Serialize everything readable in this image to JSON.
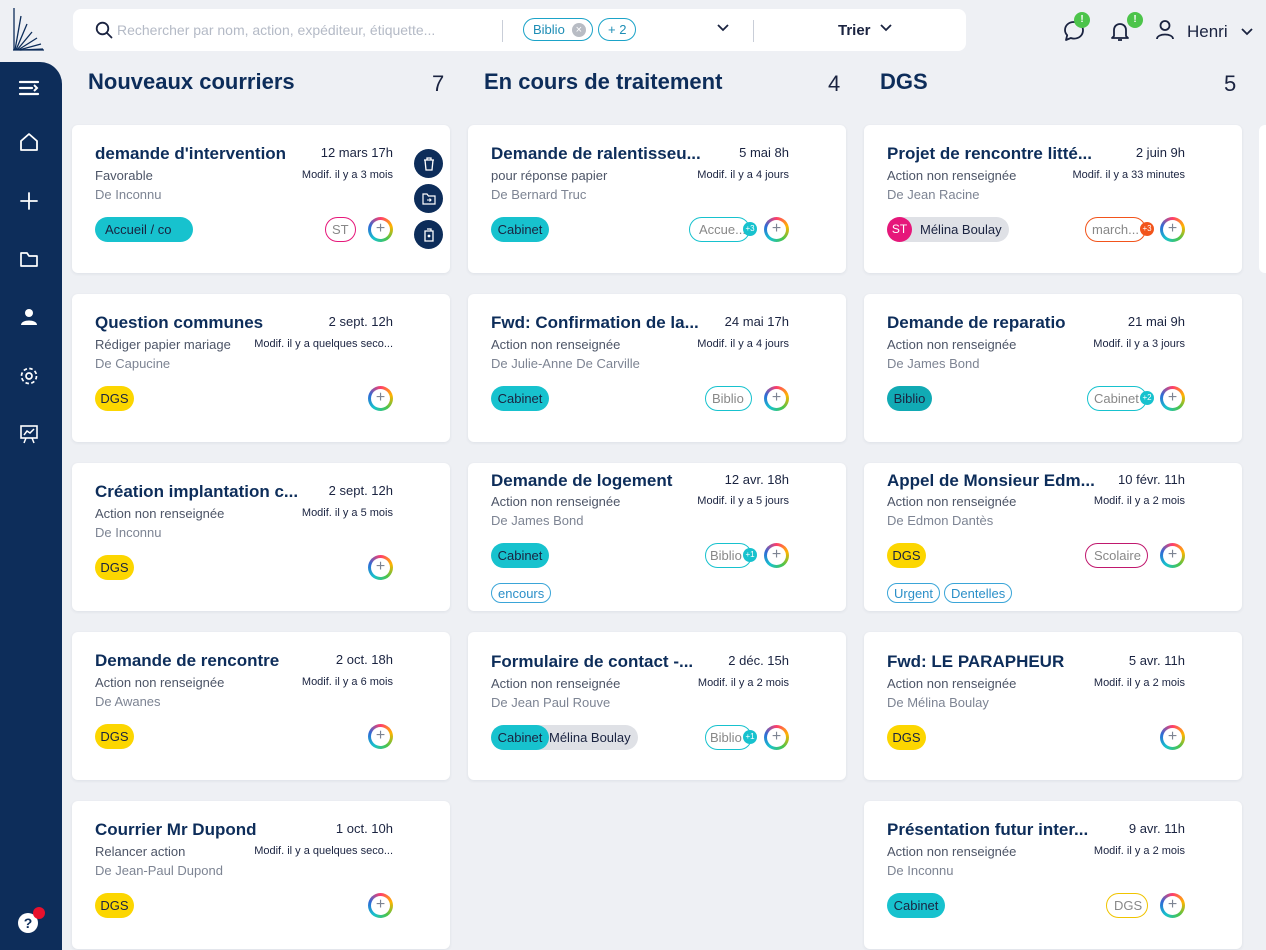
{
  "app": {
    "user_name": "Henri",
    "help_label": "?"
  },
  "search": {
    "placeholder": "Rechercher par nom, action, expéditeur, étiquette..."
  },
  "filters": {
    "chip": "Biblio",
    "more": "+ 2"
  },
  "sort": {
    "label": "Trier"
  },
  "notifications": {
    "messages_badge": "!",
    "alerts_badge": "!"
  },
  "columns": [
    {
      "title": "Nouveaux courriers",
      "count": "7",
      "cards": [
        {
          "title": "demande d'intervention",
          "date": "12 mars 17h",
          "action": "Favorable",
          "modif": "Modif. il y a 3 mois",
          "from": "De Inconnu",
          "tag": "Accueil / co",
          "person_tag": "ST"
        },
        {
          "title": "Question communes",
          "date": "2 sept. 12h",
          "action": "Rédiger papier mariage",
          "modif": "Modif. il y a quelques seco...",
          "from": "De Capucine",
          "tag": "DGS"
        },
        {
          "title": "Création implantation c...",
          "date": "2 sept. 12h",
          "action": "Action non renseignée",
          "modif": "Modif. il y a 5 mois",
          "from": "De Inconnu",
          "tag": "DGS"
        },
        {
          "title": "Demande de rencontre",
          "date": "2 oct. 18h",
          "action": "Action non renseignée",
          "modif": "Modif. il y a 6 mois",
          "from": "De Awanes",
          "tag": "DGS"
        },
        {
          "title": "Courrier Mr Dupond",
          "date": "1 oct. 10h",
          "action": "Relancer action",
          "modif": "Modif. il y a quelques seco...",
          "from": "De Jean-Paul Dupond",
          "tag": "DGS"
        }
      ]
    },
    {
      "title": "En cours de traitement",
      "count": "4",
      "cards": [
        {
          "title": "Demande de ralentisseu...",
          "date": "5 mai 8h",
          "action": "pour réponse papier",
          "modif": "Modif. il y a 4 jours",
          "from": "De Bernard Truc",
          "tag": "Cabinet",
          "person_tag": "Accue...",
          "person_count": "+3"
        },
        {
          "title": "Fwd: Confirmation de la...",
          "date": "24 mai 17h",
          "action": "Action non renseignée",
          "modif": "Modif. il y a 4 jours",
          "from": "De Julie-Anne De Carville",
          "tag": "Cabinet",
          "person_tag": "Biblio"
        },
        {
          "title": "Demande de logement",
          "date": "12 avr. 18h",
          "action": "Action non renseignée",
          "modif": "Modif. il y a 5 jours",
          "from": "De James Bond",
          "tag": "Cabinet",
          "person_tag": "Biblio",
          "person_count": "+1",
          "label": "encours"
        },
        {
          "title": "Formulaire de contact -...",
          "date": "2 déc. 15h",
          "action": "Action non renseignée",
          "modif": "Modif. il y a 2 mois",
          "from": "De Jean Paul Rouve",
          "tag": "Cabinet",
          "assignee": "Mélina Boulay",
          "person_tag": "Biblio",
          "person_count": "+1"
        }
      ]
    },
    {
      "title": "DGS",
      "count": "5",
      "cards": [
        {
          "title": "Projet de rencontre litté...",
          "date": "2 juin 9h",
          "action": "Action non renseignée",
          "modif": "Modif. il y a 33 minutes",
          "from": "De Jean Racine",
          "avatar_initials": "ST",
          "avatar_name": "Mélina Boulay",
          "person_tag": "march...",
          "person_count": "+3"
        },
        {
          "title": "Demande de reparatio",
          "date": "21 mai 9h",
          "action": "Action non renseignée",
          "modif": "Modif. il y a 3 jours",
          "from": "De James Bond",
          "tag": "Biblio",
          "person_tag": "Cabinet",
          "person_count": "+2"
        },
        {
          "title": "Appel de Monsieur Edm...",
          "date": "10 févr. 11h",
          "action": "Action non renseignée",
          "modif": "Modif. il y a 2 mois",
          "from": "De Edmon Dantès",
          "tag": "DGS",
          "person_tag": "Scolaire",
          "labels": [
            "Urgent",
            "Dentelles"
          ]
        },
        {
          "title": "Fwd: LE PARAPHEUR",
          "date": "5 avr. 11h",
          "action": "Action non renseignée",
          "modif": "Modif. il y a 2 mois",
          "from": "De Mélina Boulay",
          "tag": "DGS"
        },
        {
          "title": "Présentation futur inter...",
          "date": "9 avr. 11h",
          "action": "Action non renseignée",
          "modif": "Modif. il y a 2 mois",
          "from": "De Inconnu",
          "tag": "Cabinet",
          "person_tag": "DGS"
        }
      ]
    }
  ],
  "colors": {
    "navy": "#0d2d5a",
    "teal": "#17c2ce",
    "yellow": "#fcd600",
    "badge_green": "#4cc44a",
    "magenta": "#e6177a",
    "orange": "#f2541b"
  }
}
